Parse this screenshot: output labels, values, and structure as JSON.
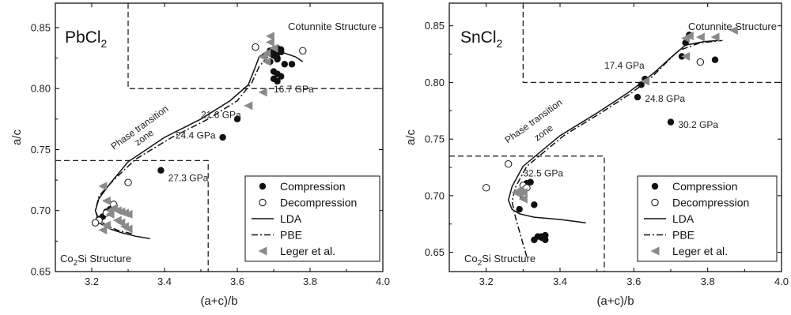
{
  "chart_data": [
    {
      "type": "scatter",
      "title": "PbCl",
      "title_sub": "2",
      "xlabel": "(a+c)/b",
      "ylabel": "a/c",
      "xlim": [
        3.1,
        4.0
      ],
      "ylim": [
        0.65,
        0.87
      ],
      "xticks": [
        "3.2",
        "3.4",
        "3.6",
        "3.8",
        "4.0"
      ],
      "yticks": [
        "0.65",
        "0.70",
        "0.75",
        "0.80",
        "0.85"
      ],
      "regions": {
        "top": "Cotunnite Structure",
        "bottom_prefix": "Co",
        "bottom_sub": "2",
        "bottom_suffix": "Si Structure",
        "middle_1": "Phase transition",
        "middle_2": "zone"
      },
      "region_bounds": {
        "top_x": 3.3,
        "top_y": 0.8,
        "bottom_x": 3.52,
        "bottom_y": 0.741
      },
      "annotations": [
        {
          "text": "16.7 GPa",
          "x": 3.7,
          "y": 0.797
        },
        {
          "text": "21.6 GPa",
          "x": 3.5,
          "y": 0.776
        },
        {
          "text": "24.4 GPa",
          "x": 3.43,
          "y": 0.759
        },
        {
          "text": "27.3 GPa",
          "x": 3.41,
          "y": 0.724
        }
      ],
      "series": [
        {
          "name": "Compression",
          "marker": "filled-circle",
          "x": [
            3.39,
            3.56,
            3.6,
            3.22,
            3.23,
            3.24,
            3.25,
            3.69,
            3.7,
            3.71,
            3.72,
            3.7,
            3.71,
            3.73,
            3.69,
            3.7,
            3.71,
            3.72,
            3.7,
            3.71,
            3.75,
            3.71,
            3.72,
            3.7,
            3.71
          ],
          "y": [
            0.733,
            0.76,
            0.775,
            0.693,
            0.695,
            0.699,
            0.701,
            0.831,
            0.832,
            0.833,
            0.832,
            0.828,
            0.825,
            0.82,
            0.822,
            0.814,
            0.812,
            0.81,
            0.808,
            0.806,
            0.82,
            0.829,
            0.83,
            0.827,
            0.824
          ]
        },
        {
          "name": "Decompression",
          "marker": "open-circle",
          "x": [
            3.65,
            3.78,
            3.3,
            3.26,
            3.24,
            3.22,
            3.21
          ],
          "y": [
            0.834,
            0.831,
            0.723,
            0.705,
            0.698,
            0.692,
            0.69
          ]
        },
        {
          "name": "LDA",
          "style": "solid",
          "x": [
            3.36,
            3.32,
            3.28,
            3.25,
            3.22,
            3.21,
            3.22,
            3.25,
            3.3,
            3.4,
            3.5,
            3.58,
            3.63,
            3.65,
            3.66,
            3.68,
            3.72,
            3.76,
            3.78
          ],
          "y": [
            0.677,
            0.679,
            0.682,
            0.685,
            0.69,
            0.7,
            0.71,
            0.722,
            0.74,
            0.76,
            0.775,
            0.79,
            0.803,
            0.818,
            0.826,
            0.83,
            0.83,
            0.826,
            0.822
          ]
        },
        {
          "name": "PBE",
          "style": "dash-dot",
          "x": [
            3.31,
            3.27,
            3.24,
            3.22,
            3.21,
            3.22,
            3.26,
            3.32,
            3.42,
            3.52,
            3.6,
            3.64,
            3.66,
            3.68,
            3.7,
            3.73
          ],
          "y": [
            0.681,
            0.684,
            0.688,
            0.692,
            0.7,
            0.712,
            0.725,
            0.742,
            0.76,
            0.775,
            0.79,
            0.805,
            0.818,
            0.825,
            0.829,
            0.828
          ]
        },
        {
          "name": "Leger et al.",
          "marker": "left-triangle",
          "x": [
            3.69,
            3.69,
            3.7,
            3.68,
            3.67,
            3.68,
            3.67,
            3.63,
            3.23,
            3.23,
            3.24,
            3.25,
            3.26,
            3.27,
            3.28,
            3.29,
            3.3,
            3.27,
            3.28,
            3.29,
            3.24,
            3.25,
            3.3
          ],
          "y": [
            0.843,
            0.838,
            0.833,
            0.829,
            0.826,
            0.822,
            0.797,
            0.786,
            0.72,
            0.684,
            0.688,
            0.7,
            0.702,
            0.7,
            0.699,
            0.698,
            0.697,
            0.692,
            0.69,
            0.687,
            0.708,
            0.697,
            0.685
          ]
        }
      ],
      "legend": [
        "Compression",
        "Decompression",
        "LDA",
        "PBE",
        "Leger et al."
      ]
    },
    {
      "type": "scatter",
      "title": "SnCl",
      "title_sub": "2",
      "xlabel": "(a+c)/b",
      "ylabel": "a/c",
      "xlim": [
        3.1,
        4.0
      ],
      "ylim": [
        0.633,
        0.87
      ],
      "xticks": [
        "3.2",
        "3.4",
        "3.6",
        "3.8",
        "4.0"
      ],
      "yticks": [
        "0.65",
        "0.70",
        "0.75",
        "0.80",
        "0.85"
      ],
      "regions": {
        "top": "Cotunnite Structure",
        "bottom_prefix": "Co",
        "bottom_sub": "2",
        "bottom_suffix": "Si Structure",
        "middle_1": "Phase transition",
        "middle_2": "zone"
      },
      "region_bounds": {
        "top_x": 3.3,
        "top_y": 0.8,
        "bottom_x": 3.52,
        "bottom_y": 0.735
      },
      "annotations": [
        {
          "text": "17.4 GPa",
          "x": 3.52,
          "y": 0.812
        },
        {
          "text": "24.8 GPa",
          "x": 3.63,
          "y": 0.783
        },
        {
          "text": "30.2 GPa",
          "x": 3.72,
          "y": 0.76
        },
        {
          "text": "32.5 GPa",
          "x": 3.3,
          "y": 0.717
        }
      ],
      "series": [
        {
          "name": "Compression",
          "marker": "filled-circle",
          "x": [
            3.29,
            3.3,
            3.31,
            3.32,
            3.33,
            3.33,
            3.34,
            3.35,
            3.35,
            3.36,
            3.36,
            3.61,
            3.62,
            3.63,
            3.7,
            3.73,
            3.75,
            3.82,
            3.74
          ],
          "y": [
            0.688,
            0.699,
            0.711,
            0.712,
            0.692,
            0.661,
            0.664,
            0.663,
            0.664,
            0.661,
            0.665,
            0.787,
            0.798,
            0.803,
            0.765,
            0.823,
            0.842,
            0.82,
            0.835
          ]
        },
        {
          "name": "Decompression",
          "marker": "open-circle",
          "x": [
            3.2,
            3.26,
            3.3,
            3.31,
            3.3,
            3.78
          ],
          "y": [
            0.707,
            0.728,
            0.709,
            0.707,
            0.701,
            0.818
          ]
        },
        {
          "name": "LDA",
          "style": "solid",
          "x": [
            3.47,
            3.4,
            3.33,
            3.29,
            3.27,
            3.26,
            3.27,
            3.3,
            3.4,
            3.5,
            3.58,
            3.63,
            3.66,
            3.7,
            3.74,
            3.79,
            3.83
          ],
          "y": [
            0.676,
            0.679,
            0.681,
            0.684,
            0.688,
            0.696,
            0.708,
            0.726,
            0.753,
            0.773,
            0.79,
            0.802,
            0.81,
            0.822,
            0.833,
            0.836,
            0.837
          ]
        },
        {
          "name": "PBE",
          "style": "dash-dot",
          "x": [
            3.31,
            3.28,
            3.27,
            3.28,
            3.31,
            3.41,
            3.51,
            3.59,
            3.64,
            3.68,
            3.72,
            3.78,
            3.84
          ],
          "y": [
            0.646,
            0.68,
            0.695,
            0.708,
            0.726,
            0.753,
            0.773,
            0.79,
            0.802,
            0.815,
            0.828,
            0.835,
            0.837
          ]
        },
        {
          "name": "Leger et al.",
          "marker": "left-triangle",
          "x": [
            3.28,
            3.29,
            3.3,
            3.29,
            3.3,
            3.63,
            3.74,
            3.74,
            3.75,
            3.78,
            3.82,
            3.87
          ],
          "y": [
            0.703,
            0.701,
            0.697,
            0.705,
            0.703,
            0.801,
            0.823,
            0.839,
            0.841,
            0.84,
            0.84,
            0.846
          ]
        }
      ],
      "legend": [
        "Compression",
        "Decompression",
        "LDA",
        "PBE",
        "Leger et al."
      ]
    }
  ]
}
